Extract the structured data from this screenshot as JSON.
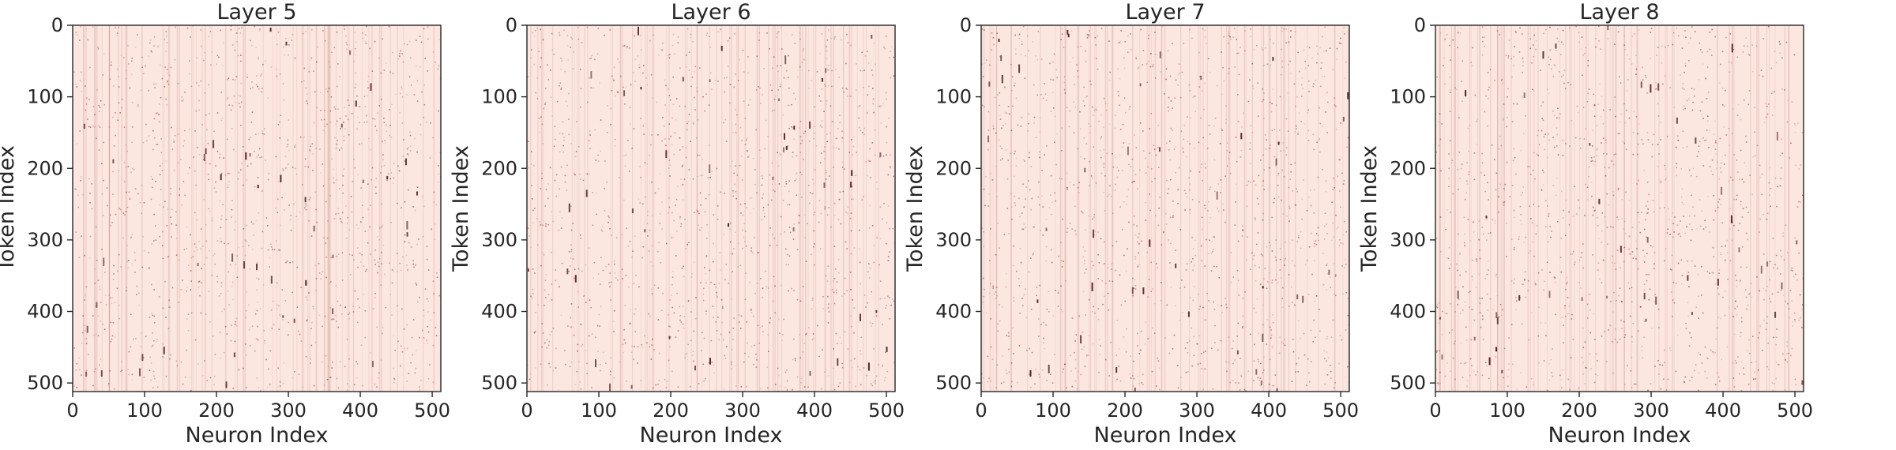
{
  "figure": {
    "heatmap_base_color": "#fbe7e0",
    "heatmap_mark_color": "#8b1a1a",
    "axis_color": "#262626"
  },
  "chart_data": [
    {
      "type": "heatmap",
      "title": "Layer 5",
      "xlabel": "Neuron Index",
      "ylabel": "Token Index",
      "xlim": [
        0,
        512
      ],
      "ylim": [
        512,
        0
      ],
      "xticks": [
        0,
        100,
        200,
        300,
        400,
        500
      ],
      "yticks": [
        0,
        100,
        200,
        300,
        400,
        500
      ],
      "grid": false,
      "colormap": "Reds",
      "description_hint": "sparse activations"
    },
    {
      "type": "heatmap",
      "title": "Layer 6",
      "xlabel": "Neuron Index",
      "ylabel": "Token Index",
      "xlim": [
        0,
        512
      ],
      "ylim": [
        512,
        0
      ],
      "xticks": [
        0,
        100,
        200,
        300,
        400,
        500
      ],
      "yticks": [
        0,
        100,
        200,
        300,
        400,
        500
      ],
      "grid": false,
      "colormap": "Reds"
    },
    {
      "type": "heatmap",
      "title": "Layer 7",
      "xlabel": "Neuron Index",
      "ylabel": "Token Index",
      "xlim": [
        0,
        512
      ],
      "ylim": [
        512,
        0
      ],
      "xticks": [
        0,
        100,
        200,
        300,
        400,
        500
      ],
      "yticks": [
        0,
        100,
        200,
        300,
        400,
        500
      ],
      "grid": false,
      "colormap": "Reds"
    },
    {
      "type": "heatmap",
      "title": "Layer 8",
      "xlabel": "Neuron Index",
      "ylabel": "Token Index",
      "xlim": [
        0,
        512
      ],
      "ylim": [
        512,
        0
      ],
      "xticks": [
        0,
        100,
        200,
        300,
        400,
        500
      ],
      "yticks": [
        0,
        100,
        200,
        300,
        400,
        500
      ],
      "grid": false,
      "colormap": "Reds"
    }
  ]
}
